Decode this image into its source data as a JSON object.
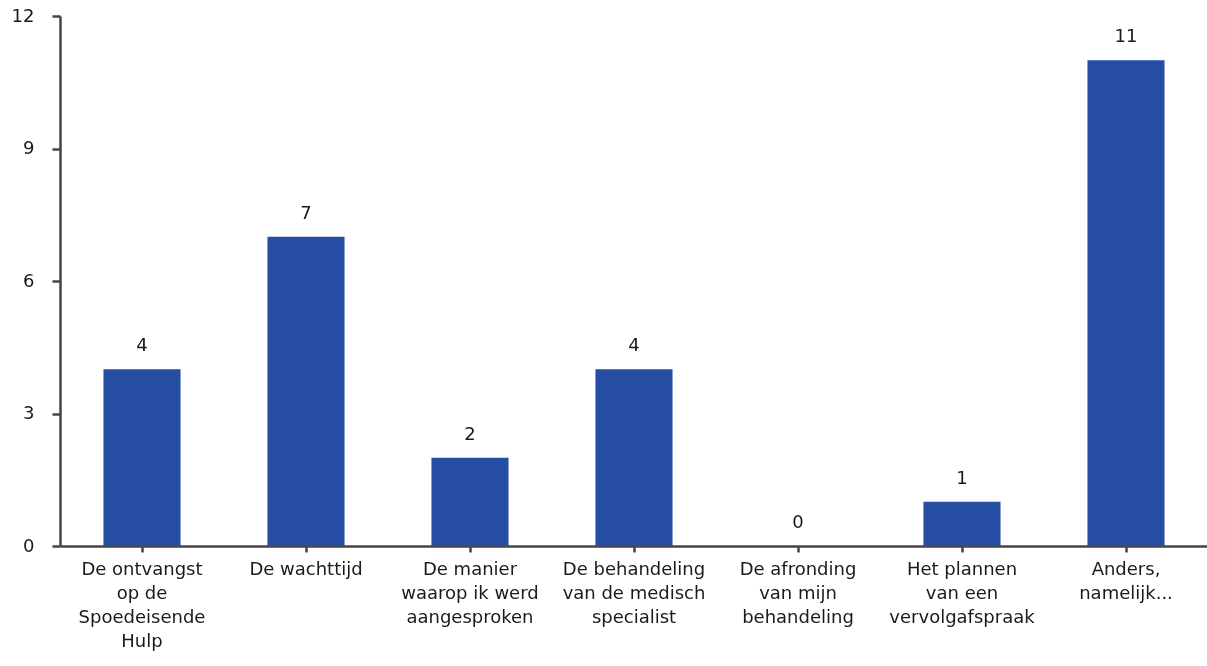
{
  "chart_data": {
    "type": "bar",
    "categories": [
      "De ontvangst op de Spoedeisende Hulp",
      "De wachttijd",
      "De manier waarop ik werd aangesproken",
      "De behandeling van de medisch specialist",
      "De afronding van mijn behandeling",
      "Het plannen van een vervolgafspraak",
      "Anders, namelijk..."
    ],
    "values": [
      4,
      7,
      2,
      4,
      0,
      1,
      11
    ],
    "color": "#264fa3",
    "ylim": [
      0,
      12
    ],
    "yticks": [
      0,
      3,
      6,
      9,
      12
    ],
    "data_labels": true
  }
}
